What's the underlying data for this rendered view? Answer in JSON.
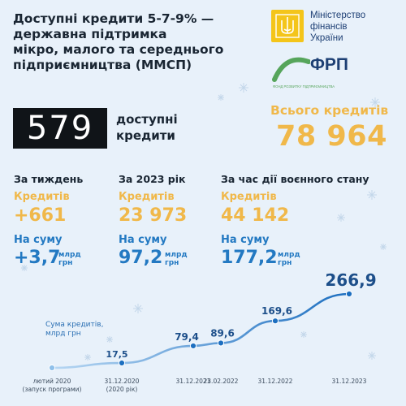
{
  "title": {
    "line1": "Доступні кредити 5-7-9% —",
    "line2": "державна підтримка",
    "line3": "мікро, малого та середнього",
    "line4": "підприємництва (ММСП)"
  },
  "logos": {
    "minfin": {
      "line1": "Міністерство",
      "line2": "фінансів",
      "line3": "України"
    },
    "frp": {
      "name": "ФРП",
      "sub": "ФОНД РОЗВИТКУ ПІДПРИЄМНИЦТВА"
    }
  },
  "brand": {
    "logo_text": "579",
    "line1": "доступні",
    "line2": "кредити"
  },
  "total": {
    "label": "Всього кредитів",
    "value": "78 964"
  },
  "stats": [
    {
      "heading": "За тиждень",
      "credits_label": "Кредитів",
      "credits_value": "+661",
      "sum_label": "На суму",
      "sum_value": "+3,7",
      "unit1": "млрд",
      "unit2": "грн"
    },
    {
      "heading": "За 2023 рік",
      "credits_label": "Кредитів",
      "credits_value": "23 973",
      "sum_label": "На суму",
      "sum_value": "97,2",
      "unit1": "млрд",
      "unit2": "грн"
    },
    {
      "heading": "За час дії воєнного стану",
      "credits_label": "Кредитів",
      "credits_value": "44 142",
      "sum_label": "На суму",
      "sum_value": "177,2",
      "unit1": "млрд",
      "unit2": "грн"
    }
  ],
  "colors": {
    "accent_orange": "#f0b84a",
    "accent_blue": "#2379c2",
    "line_start": "#9cc7ee",
    "line_end": "#1d6fc0"
  },
  "chart_data": {
    "type": "line",
    "series_label_line1": "Сума кредитів,",
    "series_label_line2": "млрд грн",
    "points": [
      {
        "x": "лютий 2020",
        "x_sub": "(запуск програми)",
        "value": null,
        "label": ""
      },
      {
        "x": "31.12.2020",
        "x_sub": "(2020 рік)",
        "value": 17.5,
        "label": "17,5"
      },
      {
        "x": "31.12.2021",
        "x_sub": "",
        "value": 79.4,
        "label": "79,4"
      },
      {
        "x": "23.02.2022",
        "x_sub": "",
        "value": 89.6,
        "label": "89,6"
      },
      {
        "x": "31.12.2022",
        "x_sub": "",
        "value": 169.6,
        "label": "169,6"
      },
      {
        "x": "31.12.2023",
        "x_sub": "",
        "value": 266.9,
        "label": "266,9"
      }
    ]
  }
}
